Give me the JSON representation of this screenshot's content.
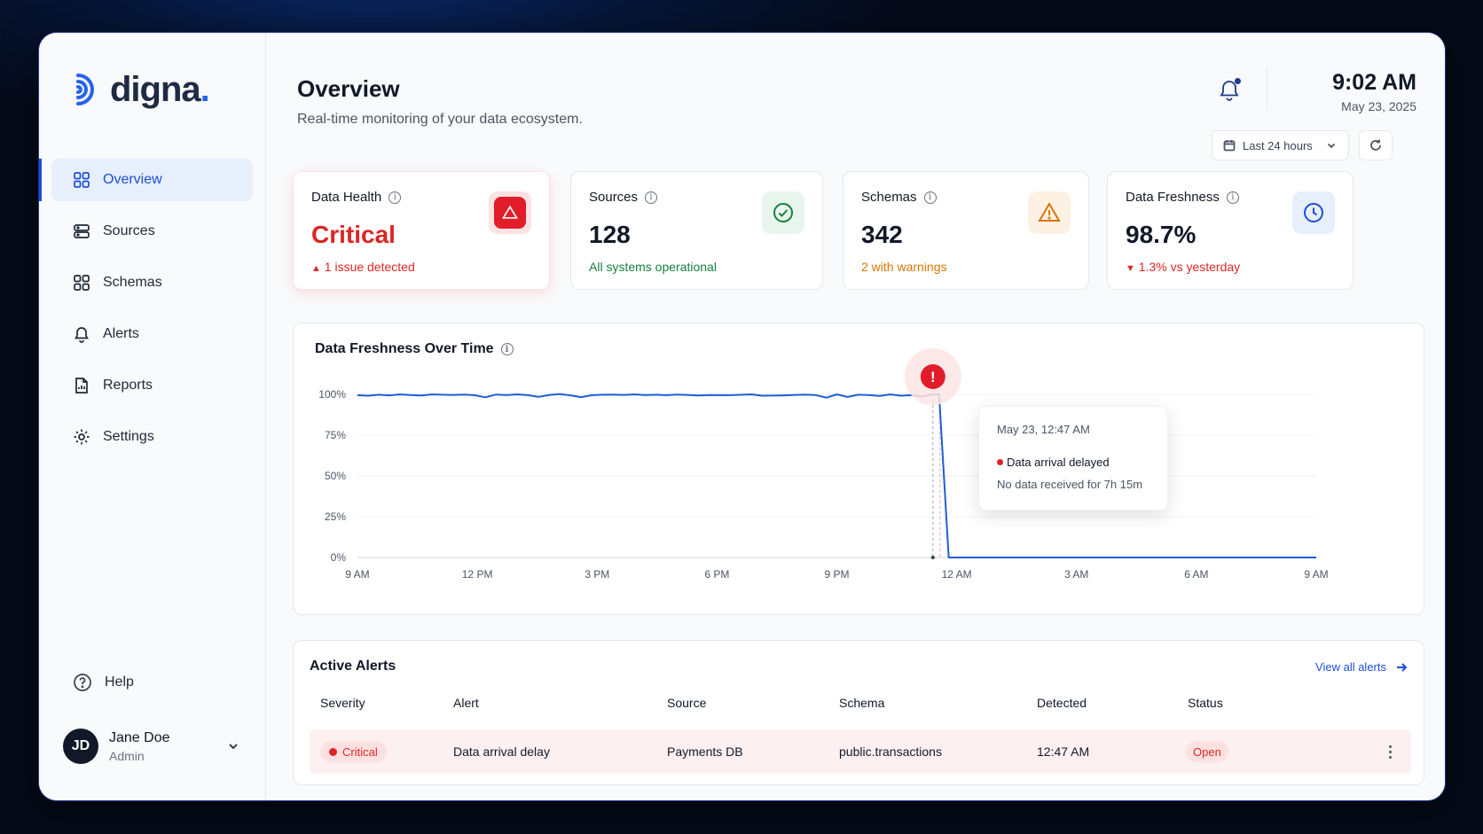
{
  "brand": {
    "name": "digna",
    "dot": "."
  },
  "sidebar": {
    "items": [
      {
        "label": "Overview",
        "icon": "grid-icon",
        "active": true
      },
      {
        "label": "Sources",
        "icon": "database-icon"
      },
      {
        "label": "Schemas",
        "icon": "schema-icon"
      },
      {
        "label": "Alerts",
        "icon": "bell-icon"
      },
      {
        "label": "Reports",
        "icon": "report-icon"
      },
      {
        "label": "Settings",
        "icon": "gear-icon"
      }
    ],
    "help_label": "Help",
    "user": {
      "initials": "JD",
      "name": "Jane Doe",
      "role": "Admin"
    }
  },
  "header": {
    "title": "Overview",
    "subtitle": "Real-time monitoring of your data ecosystem.",
    "time": "9:02 AM",
    "date": "May 23, 2025",
    "range_label": "Last 24 hours"
  },
  "cards": [
    {
      "label": "Data Health",
      "value": "Critical",
      "note": "1 issue detected",
      "note_arrow": "▲",
      "status": "critical",
      "icon": "alert-triangle-icon",
      "color": "#dc2626"
    },
    {
      "label": "Sources",
      "value": "128",
      "note": "All systems operational",
      "status": "ok",
      "icon": "check-circle-icon",
      "color": "#15803d"
    },
    {
      "label": "Schemas",
      "value": "342",
      "note": "2 with warnings",
      "status": "warning",
      "icon": "warning-triangle-icon",
      "color": "#d97706"
    },
    {
      "label": "Data Freshness",
      "value": "98.7%",
      "note": "1.3% vs yesterday",
      "note_arrow": "▼",
      "status": "down",
      "icon": "clock-icon",
      "color": "#1d4ed8"
    }
  ],
  "chart": {
    "title": "Data Freshness Over Time",
    "tooltip": {
      "time": "May 23, 12:47 AM",
      "title": "Data arrival delayed",
      "message": "No data received for 7h 15m"
    },
    "alert_marker": "!"
  },
  "chart_data": {
    "type": "line",
    "title": "Data Freshness Over Time",
    "xlabel": "",
    "ylabel": "",
    "x_ticks": [
      "9 AM",
      "12 PM",
      "3 PM",
      "6 PM",
      "9 PM",
      "12 AM",
      "3 AM",
      "6 AM",
      "9 AM"
    ],
    "y_ticks": [
      "100%",
      "75%",
      "50%",
      "25%",
      "0%"
    ],
    "ylim": [
      0,
      100
    ],
    "xlim_hours": [
      0,
      24
    ],
    "grid": true,
    "series": [
      {
        "color": "#1d5fd1",
        "points": [
          [
            0,
            99.5
          ],
          [
            0.5,
            99.2
          ],
          [
            1,
            99.8
          ],
          [
            1.5,
            99.4
          ],
          [
            2,
            100
          ],
          [
            2.5,
            99.6
          ],
          [
            3,
            99.3
          ],
          [
            3.5,
            100
          ],
          [
            4,
            99.8
          ],
          [
            4.5,
            99.7
          ],
          [
            5,
            99.9
          ],
          [
            5.5,
            99.5
          ],
          [
            6,
            98.2
          ],
          [
            6.5,
            99.9
          ],
          [
            7,
            99.6
          ],
          [
            7.5,
            100
          ],
          [
            8,
            99.5
          ],
          [
            8.5,
            98.5
          ],
          [
            9,
            99.7
          ],
          [
            9.5,
            100.2
          ],
          [
            10,
            99.4
          ],
          [
            10.5,
            98.3
          ],
          [
            11,
            99.5
          ],
          [
            11.5,
            99.8
          ],
          [
            12,
            99.9
          ],
          [
            12.5,
            99.7
          ],
          [
            13,
            100
          ],
          [
            13.5,
            99.6
          ],
          [
            14,
            99.8
          ],
          [
            14.5,
            99.5
          ],
          [
            15,
            99.9
          ],
          [
            15.5,
            99.7
          ],
          [
            16,
            99.3
          ],
          [
            16.5,
            99.6
          ],
          [
            17.5,
            99.5
          ],
          [
            18.5,
            100
          ],
          [
            19,
            99.2
          ],
          [
            20,
            99.4
          ],
          [
            21,
            99.9
          ],
          [
            21.5,
            99.6
          ],
          [
            22,
            98.0
          ],
          [
            22.5,
            100
          ],
          [
            23,
            98.4
          ],
          [
            23.5,
            99.8
          ],
          [
            24,
            99.6
          ],
          [
            24.5,
            99.1
          ],
          [
            25,
            100
          ],
          [
            25.5,
            99.2
          ],
          [
            26,
            99.6
          ],
          [
            26.5,
            98.6
          ],
          [
            26.95,
            100
          ],
          [
            27.3,
            100
          ],
          [
            27.75,
            0
          ],
          [
            45,
            0
          ]
        ]
      }
    ]
  },
  "alerts": {
    "title": "Active Alerts",
    "view_all": "View all alerts",
    "columns": [
      "Severity",
      "Alert",
      "Source",
      "Schema",
      "Detected",
      "Status"
    ],
    "rows": [
      {
        "severity": "Critical",
        "alert": "Data arrival delay",
        "source": "Payments DB",
        "schema": "public.transactions",
        "detected": "12:47 AM",
        "status": "Open"
      }
    ]
  }
}
